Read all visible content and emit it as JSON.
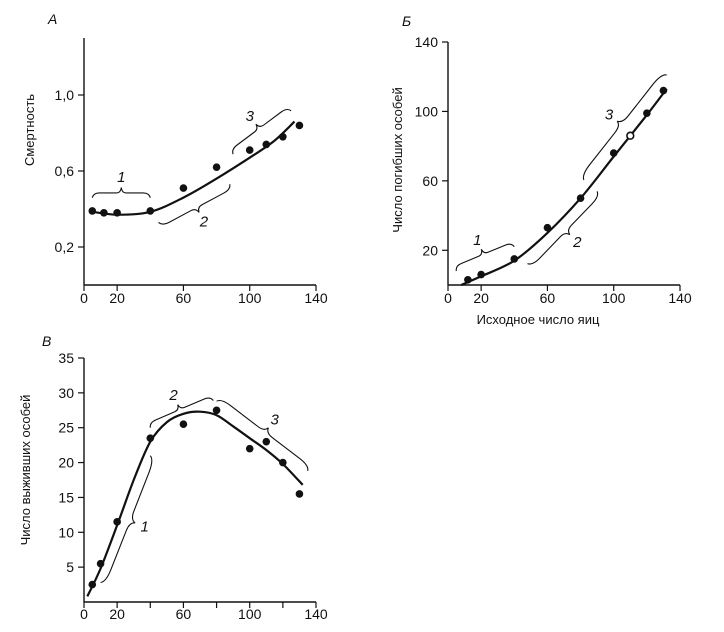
{
  "chart_data": [
    {
      "id": "A",
      "type": "scatter",
      "panel_label": "А",
      "title": "",
      "xlabel": "",
      "ylabel": "Смертность",
      "xlim": [
        0,
        140
      ],
      "ylim": [
        0,
        1.3
      ],
      "x_ticks": [
        0,
        20,
        60,
        100,
        140
      ],
      "y_ticks": [
        0.2,
        0.6,
        1.0
      ],
      "x_tick_labels": [
        "0",
        "20",
        "60",
        "100",
        "140"
      ],
      "y_tick_labels": [
        "0,2",
        "0,6",
        "1,0"
      ],
      "points": [
        {
          "x": 5,
          "y": 0.39
        },
        {
          "x": 12,
          "y": 0.38
        },
        {
          "x": 20,
          "y": 0.38
        },
        {
          "x": 40,
          "y": 0.39
        },
        {
          "x": 60,
          "y": 0.51
        },
        {
          "x": 80,
          "y": 0.62
        },
        {
          "x": 100,
          "y": 0.71
        },
        {
          "x": 110,
          "y": 0.74
        },
        {
          "x": 120,
          "y": 0.78
        },
        {
          "x": 130,
          "y": 0.84
        }
      ],
      "curve": [
        [
          5,
          0.385
        ],
        [
          20,
          0.37
        ],
        [
          40,
          0.385
        ],
        [
          60,
          0.46
        ],
        [
          80,
          0.56
        ],
        [
          100,
          0.67
        ],
        [
          115,
          0.76
        ],
        [
          127,
          0.86
        ]
      ],
      "braces": [
        {
          "label": "1",
          "x1": 5,
          "x2": 40,
          "side": "above"
        },
        {
          "label": "2",
          "x1": 45,
          "x2": 88,
          "side": "below"
        },
        {
          "label": "3",
          "x1": 90,
          "x2": 125,
          "side": "above"
        }
      ]
    },
    {
      "id": "B",
      "type": "scatter",
      "panel_label": "Б",
      "title": "",
      "xlabel": "Исходное число яиц",
      "ylabel": "Число погибших особей",
      "xlim": [
        0,
        140
      ],
      "ylim": [
        0,
        140
      ],
      "x_ticks": [
        0,
        20,
        60,
        100,
        140
      ],
      "y_ticks": [
        20,
        60,
        100,
        140
      ],
      "x_tick_labels": [
        "0",
        "20",
        "60",
        "100",
        "140"
      ],
      "y_tick_labels": [
        "20",
        "60",
        "100",
        "140"
      ],
      "points": [
        {
          "x": 12,
          "y": 3
        },
        {
          "x": 20,
          "y": 6
        },
        {
          "x": 40,
          "y": 15
        },
        {
          "x": 60,
          "y": 33
        },
        {
          "x": 80,
          "y": 50
        },
        {
          "x": 100,
          "y": 76
        },
        {
          "x": 110,
          "y": 86,
          "open": true
        },
        {
          "x": 120,
          "y": 99
        },
        {
          "x": 130,
          "y": 112
        }
      ],
      "curve": [
        [
          8,
          0
        ],
        [
          20,
          5
        ],
        [
          40,
          14
        ],
        [
          60,
          30
        ],
        [
          80,
          50
        ],
        [
          100,
          74
        ],
        [
          120,
          98
        ],
        [
          132,
          113
        ]
      ],
      "braces": [
        {
          "label": "1",
          "x1": 5,
          "x2": 40,
          "side": "above"
        },
        {
          "label": "2",
          "x1": 48,
          "x2": 90,
          "side": "below"
        },
        {
          "label": "3",
          "x1": 82,
          "x2": 132,
          "side": "above"
        }
      ]
    },
    {
      "id": "C",
      "type": "scatter",
      "panel_label": "В",
      "title": "",
      "xlabel": "",
      "ylabel": "Число выживших особей",
      "xlim": [
        0,
        140
      ],
      "ylim": [
        0,
        35
      ],
      "x_ticks": [
        0,
        20,
        40,
        60,
        80,
        100,
        120,
        140
      ],
      "y_ticks": [
        5,
        10,
        15,
        20,
        25,
        30,
        35
      ],
      "x_tick_labels": [
        "0",
        "20",
        "",
        "60",
        "",
        "100",
        "",
        "140"
      ],
      "y_tick_labels": [
        "5",
        "10",
        "15",
        "20",
        "25",
        "30",
        "35"
      ],
      "points": [
        {
          "x": 5,
          "y": 2.5
        },
        {
          "x": 10,
          "y": 5.5
        },
        {
          "x": 20,
          "y": 11.5
        },
        {
          "x": 40,
          "y": 23.5
        },
        {
          "x": 60,
          "y": 25.5
        },
        {
          "x": 80,
          "y": 27.5
        },
        {
          "x": 100,
          "y": 22
        },
        {
          "x": 110,
          "y": 23
        },
        {
          "x": 120,
          "y": 20
        },
        {
          "x": 130,
          "y": 15.5
        }
      ],
      "curve": [
        [
          2,
          0.8
        ],
        [
          10,
          4.8
        ],
        [
          20,
          11
        ],
        [
          30,
          17.5
        ],
        [
          40,
          23
        ],
        [
          50,
          25.8
        ],
        [
          60,
          27
        ],
        [
          70,
          27.3
        ],
        [
          80,
          26.8
        ],
        [
          90,
          25.2
        ],
        [
          100,
          23.5
        ],
        [
          110,
          21.8
        ],
        [
          120,
          19.8
        ],
        [
          132,
          16.8
        ]
      ],
      "braces": [
        {
          "label": "1",
          "x1": 10,
          "x2": 40,
          "side": "below"
        },
        {
          "label": "2",
          "x1": 40,
          "x2": 78,
          "side": "above"
        },
        {
          "label": "3",
          "x1": 80,
          "x2": 135,
          "side": "above"
        }
      ]
    }
  ]
}
